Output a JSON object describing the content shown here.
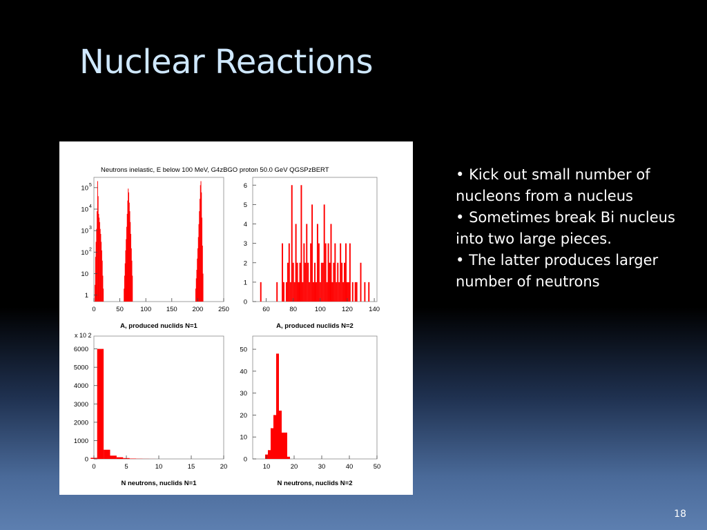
{
  "slide": {
    "title": "Nuclear Reactions",
    "bullets": [
      "Kick out small number of nucleons from a nucleus",
      "Sometimes break Bi nucleus into two large pieces.",
      "The latter produces larger number of neutrons"
    ],
    "page_number": "18"
  },
  "colors": {
    "bar": "#ff0000",
    "title": "#cfe8ff"
  },
  "figure": {
    "header": "Neutrons inelastic, E below 100 MeV,  G4zBGO proton 50.0 GeV QGSPzBERT"
  },
  "chart_data": [
    {
      "type": "bar",
      "title": "",
      "xlabel": "A, produced nuclids N=1",
      "ylabel": "",
      "xlim": [
        0,
        250
      ],
      "ylim": [
        0.5,
        300000
      ],
      "yscale": "log",
      "xticks": [
        "0",
        "50",
        "100",
        "150",
        "200",
        "250"
      ],
      "yticks": [
        "1",
        "10",
        "10",
        "10",
        "10",
        "10"
      ],
      "ytick_exponents": [
        "",
        "",
        "2",
        "3",
        "4",
        "5"
      ],
      "x": [
        2,
        3,
        4,
        5,
        6,
        7,
        8,
        9,
        10,
        11,
        12,
        13,
        14,
        15,
        16,
        17,
        18,
        58,
        59,
        60,
        61,
        62,
        63,
        64,
        65,
        66,
        67,
        68,
        69,
        70,
        71,
        72,
        73,
        74,
        196,
        197,
        198,
        199,
        200,
        201,
        202,
        203,
        204,
        205,
        206,
        207,
        208,
        209,
        210
      ],
      "values": [
        3,
        60,
        300,
        1200,
        8000,
        200000,
        40000,
        6000,
        4000,
        2500,
        1200,
        700,
        300,
        120,
        40,
        8,
        2,
        2,
        8,
        30,
        120,
        400,
        1500,
        6000,
        25000,
        90000,
        60000,
        20000,
        8000,
        2500,
        700,
        150,
        40,
        8,
        2,
        6,
        15,
        50,
        150,
        500,
        2000,
        8000,
        30000,
        130000,
        200000,
        60000,
        4000,
        200,
        10
      ]
    },
    {
      "type": "bar",
      "title": "",
      "xlabel": "A, produced nuclids N=2",
      "ylabel": "",
      "xlim": [
        50,
        142
      ],
      "ylim": [
        0,
        6.4
      ],
      "xticks": [
        "60",
        "80",
        "100",
        "120",
        "140"
      ],
      "yticks": [
        "0",
        "1",
        "2",
        "3",
        "4",
        "5",
        "6"
      ],
      "x": [
        56,
        68,
        72,
        73,
        75,
        76,
        77,
        78,
        79,
        80,
        81,
        82,
        83,
        84,
        85,
        86,
        87,
        88,
        89,
        90,
        91,
        92,
        93,
        94,
        95,
        96,
        97,
        98,
        99,
        100,
        101,
        102,
        103,
        104,
        105,
        106,
        107,
        108,
        109,
        110,
        111,
        112,
        113,
        114,
        115,
        116,
        117,
        118,
        119,
        120,
        121,
        122,
        124,
        126,
        127,
        130,
        133,
        136
      ],
      "values": [
        1,
        1,
        3,
        1,
        1,
        2,
        3,
        1,
        6,
        2,
        1,
        4,
        2,
        1,
        2,
        6,
        1,
        3,
        2,
        4,
        2,
        1,
        3,
        5,
        1,
        2,
        1,
        4,
        3,
        1,
        2,
        2,
        5,
        3,
        1,
        3,
        2,
        4,
        1,
        2,
        3,
        1,
        2,
        1,
        3,
        2,
        1,
        2,
        3,
        1,
        1,
        3,
        1,
        1,
        1,
        2,
        1,
        1
      ]
    },
    {
      "type": "bar",
      "title": "",
      "xlabel": "N neutrons, nuclids N=1",
      "ylabel": "",
      "y_multiplier": "x 10 2",
      "xlim": [
        0,
        20
      ],
      "ylim": [
        0,
        6700
      ],
      "xticks": [
        "0",
        "5",
        "10",
        "15",
        "20"
      ],
      "yticks": [
        "0",
        "1000",
        "2000",
        "3000",
        "4000",
        "5000",
        "6000"
      ],
      "x": [
        0,
        1,
        2,
        3,
        4,
        5,
        6,
        7,
        8,
        9
      ],
      "values": [
        60,
        6000,
        500,
        180,
        90,
        45,
        20,
        10,
        5,
        2
      ]
    },
    {
      "type": "bar",
      "title": "",
      "xlabel": "N neutrons, nuclids N=2",
      "ylabel": "",
      "xlim": [
        5,
        50
      ],
      "ylim": [
        0,
        56
      ],
      "xticks": [
        "10",
        "20",
        "30",
        "40",
        "50"
      ],
      "yticks": [
        "0",
        "10",
        "20",
        "30",
        "40",
        "50"
      ],
      "x": [
        10,
        11,
        12,
        13,
        14,
        15,
        16,
        17,
        18
      ],
      "values": [
        2,
        4,
        14,
        20,
        48,
        22,
        12,
        12,
        1
      ]
    }
  ]
}
